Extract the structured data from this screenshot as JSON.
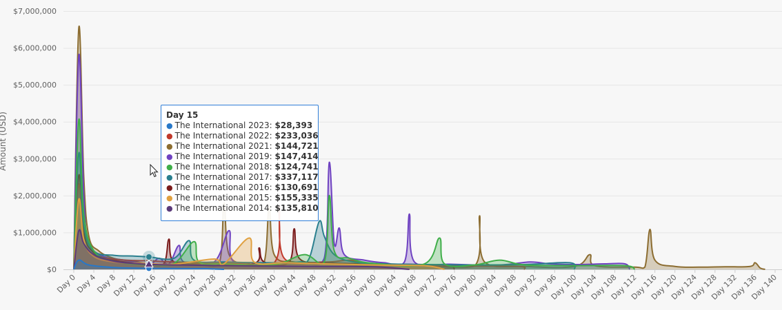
{
  "chart_data": {
    "type": "area",
    "ylabel": "Amount (USD)",
    "xlabel": "",
    "ylim": [
      0,
      7000000
    ],
    "xlim": [
      0,
      140
    ],
    "y_ticks": [
      0,
      1000000,
      2000000,
      3000000,
      4000000,
      5000000,
      6000000,
      7000000
    ],
    "y_tick_labels": [
      "$0",
      "$1,000,000",
      "$2,000,000",
      "$3,000,000",
      "$4,000,000",
      "$5,000,000",
      "$6,000,000",
      "$7,000,000"
    ],
    "x_ticks": [
      0,
      4,
      8,
      12,
      16,
      20,
      24,
      28,
      32,
      36,
      40,
      44,
      48,
      52,
      56,
      60,
      64,
      68,
      72,
      76,
      80,
      84,
      88,
      92,
      96,
      100,
      104,
      108,
      112,
      116,
      120,
      124,
      128,
      132,
      136,
      140
    ],
    "x_tick_labels": [
      "Day 0",
      "Day 4",
      "Day 8",
      "Day 12",
      "Day 16",
      "Day 20",
      "Day 24",
      "Day 28",
      "Day 32",
      "Day 36",
      "Day 40",
      "Day 44",
      "Day 48",
      "Day 52",
      "Day 56",
      "Day 60",
      "Day 64",
      "Day 68",
      "Day 72",
      "Day 76",
      "Day 80",
      "Day 84",
      "Day 88",
      "Day 92",
      "Day 96",
      "Day 100",
      "Day 104",
      "Day 108",
      "Day 112",
      "Day 116",
      "Day 120",
      "Day 124",
      "Day 128",
      "Day 132",
      "Day 136",
      "Day 140"
    ],
    "grid": "horizontal",
    "series": [
      {
        "name": "The International 2021",
        "color": "#8c6d31",
        "points": [
          [
            0,
            0
          ],
          [
            1,
            6550000
          ],
          [
            2,
            2500000
          ],
          [
            3,
            900000
          ],
          [
            5,
            500000
          ],
          [
            8,
            300000
          ],
          [
            12,
            220000
          ],
          [
            15,
            144721
          ],
          [
            20,
            130000
          ],
          [
            25,
            120000
          ],
          [
            29,
            150000
          ],
          [
            30,
            1800000
          ],
          [
            31,
            400000
          ],
          [
            35,
            150000
          ],
          [
            38,
            200000
          ],
          [
            39,
            1700000
          ],
          [
            40,
            400000
          ],
          [
            44,
            200000
          ],
          [
            48,
            160000
          ],
          [
            52,
            140000
          ],
          [
            60,
            110000
          ],
          [
            70,
            100000
          ],
          [
            80,
            90000
          ],
          [
            81,
            1450000
          ],
          [
            82,
            200000
          ],
          [
            90,
            80000
          ],
          [
            100,
            80000
          ],
          [
            103,
            400000
          ],
          [
            104,
            100000
          ],
          [
            112,
            60000
          ],
          [
            114,
            60000
          ],
          [
            115,
            1080000
          ],
          [
            116,
            250000
          ],
          [
            120,
            80000
          ],
          [
            125,
            60000
          ],
          [
            130,
            70000
          ],
          [
            135,
            80000
          ],
          [
            136,
            180000
          ],
          [
            137,
            40000
          ],
          [
            138,
            0
          ]
        ]
      },
      {
        "name": "The International 2019",
        "color": "#6f42c1",
        "points": [
          [
            0,
            0
          ],
          [
            1,
            5800000
          ],
          [
            2,
            2000000
          ],
          [
            3,
            700000
          ],
          [
            6,
            350000
          ],
          [
            10,
            250000
          ],
          [
            15,
            147414
          ],
          [
            17,
            300000
          ],
          [
            19,
            150000
          ],
          [
            21,
            650000
          ],
          [
            22,
            200000
          ],
          [
            28,
            200000
          ],
          [
            31,
            1050000
          ],
          [
            32,
            200000
          ],
          [
            40,
            160000
          ],
          [
            46,
            160000
          ],
          [
            50,
            300000
          ],
          [
            51,
            2900000
          ],
          [
            52,
            700000
          ],
          [
            53,
            1120000
          ],
          [
            54,
            400000
          ],
          [
            58,
            250000
          ],
          [
            62,
            180000
          ],
          [
            66,
            200000
          ],
          [
            67,
            1500000
          ],
          [
            68,
            200000
          ],
          [
            75,
            140000
          ],
          [
            85,
            120000
          ],
          [
            91,
            200000
          ],
          [
            95,
            150000
          ],
          [
            100,
            130000
          ],
          [
            106,
            150000
          ],
          [
            110,
            150000
          ],
          [
            111,
            0
          ]
        ]
      },
      {
        "name": "The International 2016",
        "color": "#7b1c1c",
        "points": [
          [
            0,
            0
          ],
          [
            1,
            2550000
          ],
          [
            2,
            1000000
          ],
          [
            4,
            450000
          ],
          [
            8,
            250000
          ],
          [
            12,
            170000
          ],
          [
            15,
            130691
          ],
          [
            18,
            160000
          ],
          [
            19,
            820000
          ],
          [
            20,
            200000
          ],
          [
            26,
            160000
          ],
          [
            36,
            160000
          ],
          [
            37,
            580000
          ],
          [
            38,
            200000
          ],
          [
            43,
            200000
          ],
          [
            44,
            1100000
          ],
          [
            45,
            300000
          ],
          [
            50,
            180000
          ],
          [
            60,
            150000
          ],
          [
            70,
            130000
          ],
          [
            75,
            110000
          ],
          [
            76,
            0
          ]
        ]
      },
      {
        "name": "The International 2022",
        "color": "#c0392b",
        "points": [
          [
            0,
            0
          ],
          [
            1,
            2300000
          ],
          [
            2,
            800000
          ],
          [
            4,
            400000
          ],
          [
            8,
            280000
          ],
          [
            12,
            240000
          ],
          [
            15,
            233036
          ],
          [
            20,
            200000
          ],
          [
            30,
            180000
          ],
          [
            40,
            180000
          ],
          [
            41,
            1700000
          ],
          [
            42,
            300000
          ],
          [
            50,
            200000
          ],
          [
            55,
            250000
          ],
          [
            58,
            150000
          ],
          [
            62,
            120000
          ],
          [
            70,
            100000
          ],
          [
            80,
            90000
          ],
          [
            89,
            80000
          ],
          [
            90,
            0
          ]
        ]
      },
      {
        "name": "The International 2017",
        "color": "#2a7f8e",
        "points": [
          [
            0,
            0
          ],
          [
            1,
            3150000
          ],
          [
            2,
            1200000
          ],
          [
            4,
            500000
          ],
          [
            8,
            380000
          ],
          [
            12,
            360000
          ],
          [
            15,
            337117
          ],
          [
            20,
            300000
          ],
          [
            23,
            780000
          ],
          [
            24,
            250000
          ],
          [
            30,
            200000
          ],
          [
            40,
            180000
          ],
          [
            45,
            200000
          ],
          [
            47,
            300000
          ],
          [
            49,
            1300000
          ],
          [
            50,
            900000
          ],
          [
            52,
            400000
          ],
          [
            56,
            200000
          ],
          [
            62,
            150000
          ],
          [
            70,
            130000
          ],
          [
            80,
            120000
          ],
          [
            90,
            130000
          ],
          [
            99,
            180000
          ],
          [
            100,
            0
          ]
        ]
      },
      {
        "name": "The International 2018",
        "color": "#3fae49",
        "points": [
          [
            0,
            0
          ],
          [
            1,
            4050000
          ],
          [
            2,
            1500000
          ],
          [
            4,
            500000
          ],
          [
            8,
            220000
          ],
          [
            12,
            140000
          ],
          [
            15,
            124741
          ],
          [
            20,
            160000
          ],
          [
            24,
            750000
          ],
          [
            25,
            200000
          ],
          [
            30,
            150000
          ],
          [
            40,
            130000
          ],
          [
            46,
            400000
          ],
          [
            50,
            200000
          ],
          [
            51,
            2000000
          ],
          [
            52,
            500000
          ],
          [
            55,
            300000
          ],
          [
            60,
            160000
          ],
          [
            70,
            150000
          ],
          [
            73,
            850000
          ],
          [
            74,
            150000
          ],
          [
            80,
            120000
          ],
          [
            85,
            250000
          ],
          [
            90,
            120000
          ],
          [
            100,
            100000
          ],
          [
            110,
            100000
          ],
          [
            112,
            0
          ]
        ]
      },
      {
        "name": "The International 2015",
        "color": "#e0a040",
        "points": [
          [
            0,
            0
          ],
          [
            1,
            1900000
          ],
          [
            2,
            800000
          ],
          [
            4,
            350000
          ],
          [
            8,
            200000
          ],
          [
            12,
            170000
          ],
          [
            15,
            155335
          ],
          [
            20,
            140000
          ],
          [
            28,
            280000
          ],
          [
            30,
            150000
          ],
          [
            35,
            850000
          ],
          [
            36,
            200000
          ],
          [
            42,
            180000
          ],
          [
            50,
            150000
          ],
          [
            60,
            120000
          ],
          [
            70,
            100000
          ],
          [
            74,
            0
          ]
        ]
      },
      {
        "name": "The International 2014",
        "color": "#5b3a7a",
        "points": [
          [
            0,
            0
          ],
          [
            1,
            1050000
          ],
          [
            2,
            700000
          ],
          [
            4,
            400000
          ],
          [
            8,
            220000
          ],
          [
            12,
            160000
          ],
          [
            15,
            135810
          ],
          [
            20,
            120000
          ],
          [
            26,
            110000
          ],
          [
            30,
            100000
          ],
          [
            40,
            90000
          ],
          [
            50,
            80000
          ],
          [
            60,
            70000
          ],
          [
            67,
            0
          ]
        ]
      },
      {
        "name": "The International 2023",
        "color": "#2878c8",
        "points": [
          [
            0,
            0
          ],
          [
            1,
            250000
          ],
          [
            3,
            120000
          ],
          [
            8,
            50000
          ],
          [
            12,
            35000
          ],
          [
            15,
            28393
          ],
          [
            20,
            25000
          ],
          [
            26,
            20000
          ],
          [
            30,
            0
          ]
        ]
      }
    ],
    "tooltip": {
      "title": "Day 15",
      "rows": [
        {
          "name": "The International 2023",
          "value": "$28,393",
          "color": "#2878c8"
        },
        {
          "name": "The International 2022",
          "value": "$233,036",
          "color": "#c0392b"
        },
        {
          "name": "The International 2021",
          "value": "$144,721",
          "color": "#8c6d31"
        },
        {
          "name": "The International 2019",
          "value": "$147,414",
          "color": "#6f42c1"
        },
        {
          "name": "The International 2018",
          "value": "$124,741",
          "color": "#3fae49"
        },
        {
          "name": "The International 2017",
          "value": "$337,117",
          "color": "#2a7f8e"
        },
        {
          "name": "The International 2016",
          "value": "$130,691",
          "color": "#7b1c1c"
        },
        {
          "name": "The International 2015",
          "value": "$155,335",
          "color": "#e0a040"
        },
        {
          "name": "The International 2014",
          "value": "$135,810",
          "color": "#5b3a7a"
        }
      ]
    }
  }
}
